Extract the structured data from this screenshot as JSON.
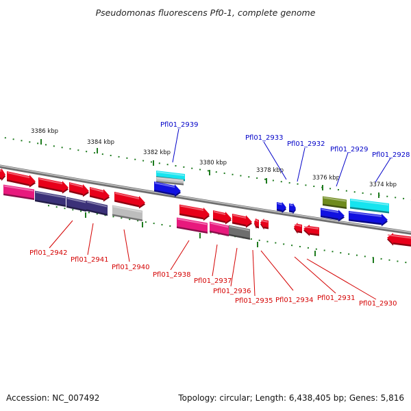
{
  "title": "Pseudomonas fluorescens Pf0-1, complete genome",
  "footer": {
    "accession": "Accession: NC_007492",
    "topology": "Topology: circular; Length: 6,438,405 bp; Genes: 5,816"
  },
  "colors": {
    "gene_label_upper": "#0000c8",
    "gene_label_lower": "#d40000",
    "scale_ticks": "#1d7a1d",
    "backbone": "#8a8a8a",
    "red": "#e8001a",
    "pink": "#e8197d",
    "navy": "#3b3178",
    "gray": "#bdbdbd",
    "darkgray": "#6e6e6e",
    "cyan": "#16e4ef",
    "blue": "#1111e0",
    "olive": "#6f8a1e"
  },
  "scale_labels": [
    {
      "text": "3386 kbp",
      "kbp": 3386
    },
    {
      "text": "3384 kbp",
      "kbp": 3384
    },
    {
      "text": "3382 kbp",
      "kbp": 3382
    },
    {
      "text": "3380 kbp",
      "kbp": 3380
    },
    {
      "text": "3378 kbp",
      "kbp": 3378
    },
    {
      "text": "3376 kbp",
      "kbp": 3376
    },
    {
      "text": "3374 kbp",
      "kbp": 3374
    }
  ],
  "gene_labels_upper": [
    "Pfl01_2939",
    "Pfl01_2933",
    "Pfl01_2932",
    "Pfl01_2929",
    "Pfl01_2928"
  ],
  "gene_labels_lower": [
    "Pfl01_2942",
    "Pfl01_2941",
    "Pfl01_2940",
    "Pfl01_2938",
    "Pfl01_2937",
    "Pfl01_2936",
    "Pfl01_2935",
    "Pfl01_2934",
    "Pfl01_2931",
    "Pfl01_2930"
  ]
}
